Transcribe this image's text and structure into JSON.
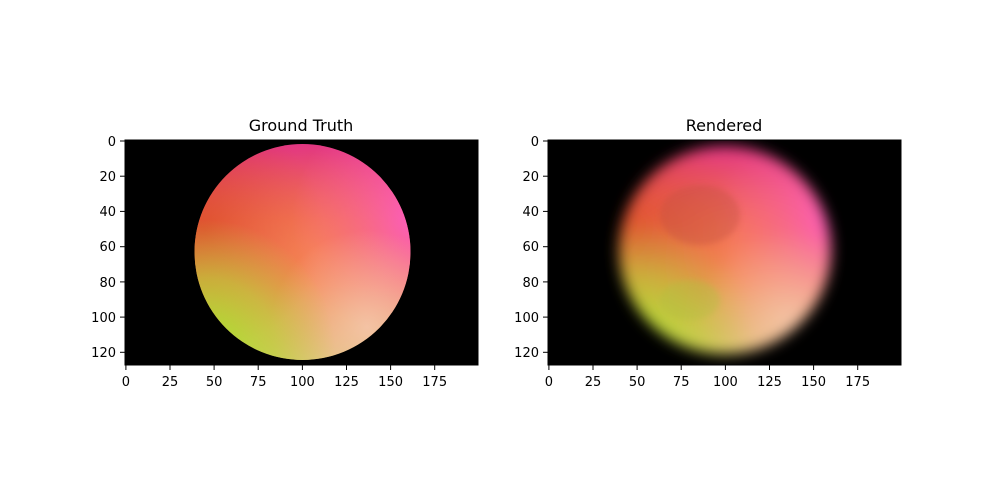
{
  "figure": {
    "panels": [
      {
        "title": "Ground Truth",
        "image": "sharp-gradient-sphere",
        "xticks": [
          "0",
          "25",
          "50",
          "75",
          "100",
          "125",
          "150",
          "175"
        ],
        "yticks": [
          "0",
          "20",
          "40",
          "60",
          "80",
          "100",
          "120"
        ]
      },
      {
        "title": "Rendered",
        "image": "blurred-gradient-sphere",
        "xticks": [
          "0",
          "25",
          "50",
          "75",
          "100",
          "125",
          "150",
          "175"
        ],
        "yticks": [
          "0",
          "20",
          "40",
          "60",
          "80",
          "100",
          "120"
        ]
      }
    ],
    "image_size": {
      "width": 200,
      "height": 128
    },
    "colors": {
      "background": "#000000",
      "top": "#e0308a",
      "center": "#f07850",
      "left": "#e05a2a",
      "right": "#ff60c8",
      "bottom_left": "#b0e030",
      "bottom_right": "#f0c0a0"
    }
  }
}
